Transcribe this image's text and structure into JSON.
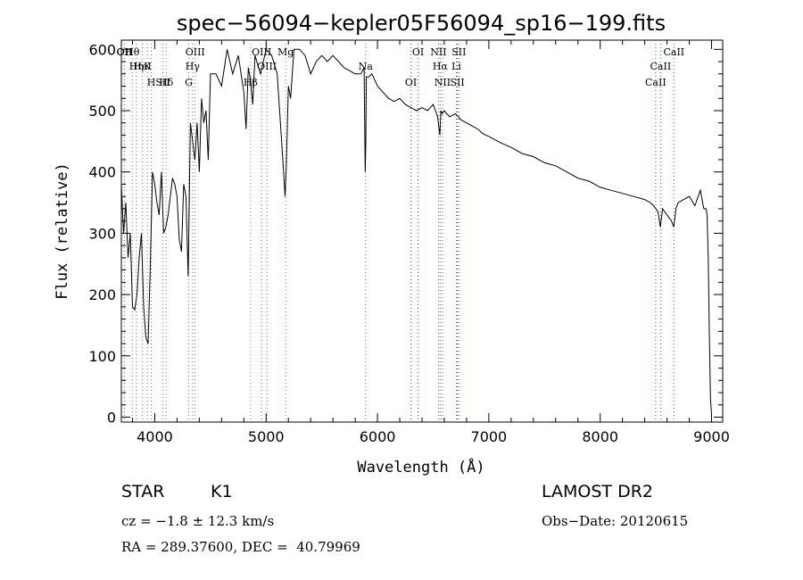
{
  "chart_data": {
    "type": "line",
    "title": "spec−56094−kepler05F56094_sp16−199.fits",
    "xlabel": "Wavelength (Å)",
    "ylabel": "Flux (relative)",
    "xlim": [
      3700,
      9100
    ],
    "ylim": [
      -8,
      615
    ],
    "x_ticks": [
      4000,
      5000,
      6000,
      7000,
      8000,
      9000
    ],
    "y_ticks": [
      0,
      100,
      200,
      300,
      400,
      500,
      600
    ],
    "series": [
      {
        "x": [
          3700,
          3720,
          3740,
          3760,
          3780,
          3800,
          3820,
          3840,
          3860,
          3880,
          3900,
          3920,
          3940,
          3960,
          3980,
          4000,
          4020,
          4040,
          4060,
          4080,
          4100,
          4120,
          4140,
          4160,
          4180,
          4200,
          4220,
          4240,
          4260,
          4280,
          4300,
          4320,
          4340,
          4360,
          4380,
          4400,
          4420,
          4440,
          4460,
          4480,
          4500,
          4550,
          4600,
          4650,
          4700,
          4750,
          4800,
          4820,
          4840,
          4860,
          4880,
          4900,
          4950,
          5000,
          5050,
          5100,
          5150,
          5170,
          5180,
          5190,
          5200,
          5220,
          5250,
          5300,
          5350,
          5400,
          5450,
          5500,
          5550,
          5600,
          5650,
          5700,
          5750,
          5800,
          5850,
          5880,
          5890,
          5895,
          5900,
          5920,
          5950,
          6000,
          6050,
          6100,
          6150,
          6200,
          6250,
          6300,
          6350,
          6400,
          6450,
          6500,
          6540,
          6560,
          6570,
          6580,
          6600,
          6620,
          6650,
          6700,
          6750,
          6800,
          6850,
          6900,
          6950,
          7000,
          7100,
          7200,
          7300,
          7400,
          7500,
          7600,
          7700,
          7800,
          7900,
          8000,
          8100,
          8200,
          8300,
          8400,
          8450,
          8480,
          8500,
          8520,
          8540,
          8560,
          8600,
          8640,
          8660,
          8680,
          8700,
          8750,
          8800,
          8850,
          8900,
          8930,
          8950,
          8960,
          8970,
          8980,
          8990,
          9000
        ],
        "y": [
          380,
          300,
          350,
          260,
          300,
          180,
          175,
          200,
          260,
          300,
          180,
          130,
          120,
          250,
          400,
          380,
          350,
          330,
          400,
          300,
          310,
          330,
          360,
          390,
          380,
          360,
          290,
          270,
          380,
          360,
          230,
          480,
          450,
          420,
          480,
          400,
          520,
          480,
          500,
          420,
          560,
          560,
          540,
          600,
          560,
          590,
          530,
          470,
          570,
          550,
          510,
          590,
          560,
          600,
          590,
          560,
          420,
          360,
          400,
          470,
          540,
          520,
          600,
          600,
          590,
          560,
          580,
          590,
          580,
          590,
          580,
          570,
          565,
          560,
          560,
          570,
          400,
          450,
          555,
          555,
          560,
          540,
          530,
          520,
          515,
          520,
          510,
          505,
          500,
          505,
          500,
          510,
          490,
          460,
          500,
          495,
          500,
          495,
          490,
          495,
          485,
          480,
          475,
          470,
          462,
          458,
          448,
          440,
          430,
          425,
          415,
          410,
          400,
          390,
          385,
          375,
          370,
          365,
          360,
          355,
          350,
          345,
          340,
          335,
          310,
          340,
          330,
          320,
          310,
          340,
          350,
          355,
          360,
          345,
          370,
          340,
          340,
          330,
          260,
          140,
          30,
          5
        ],
        "color": "#000000"
      }
    ],
    "line_annotations": [
      {
        "label": "Hθ",
        "x": 3798
      },
      {
        "label": "K",
        "x": 3934
      },
      {
        "label": "Hδ",
        "x": 4102
      },
      {
        "label": "OII",
        "x": 3727
      },
      {
        "label": "HeI",
        "x": 3889
      },
      {
        "label": "SII",
        "x": 4072
      },
      {
        "label": "OII",
        "x": 3729
      },
      {
        "label": "Hη",
        "x": 3835
      },
      {
        "label": "H",
        "x": 3969
      },
      {
        "label": "OIII",
        "x": 4363
      },
      {
        "label": "Hγ",
        "x": 4340
      },
      {
        "label": "G",
        "x": 4305
      },
      {
        "label": "OIII",
        "x": 4959
      },
      {
        "label": "OIII",
        "x": 5007
      },
      {
        "label": "Hβ",
        "x": 4861
      },
      {
        "label": "Mg",
        "x": 5175
      },
      {
        "label": "Na",
        "x": 5893
      },
      {
        "label": "OI",
        "x": 6300
      },
      {
        "label": "OI",
        "x": 6364
      },
      {
        "label": "Hα",
        "x": 6563
      },
      {
        "label": "SII",
        "x": 6717
      },
      {
        "label": "NII",
        "x": 6548
      },
      {
        "label": "Li",
        "x": 6708
      },
      {
        "label": "NII",
        "x": 6584
      },
      {
        "label": "SII",
        "x": 6731
      },
      {
        "label": "CaII",
        "x": 8542
      },
      {
        "label": "CaII",
        "x": 8498
      },
      {
        "label": "CaII",
        "x": 8662
      }
    ],
    "grid": false,
    "legend": "none"
  },
  "info": {
    "class_label": "STAR",
    "subclass": "K1",
    "survey": "LAMOST DR2",
    "cz": "cz = −1.8 ± 12.3 km/s",
    "obs_date": "Obs−Date: 20120615",
    "coords": "RA = 289.37600, DEC =  40.79969"
  }
}
